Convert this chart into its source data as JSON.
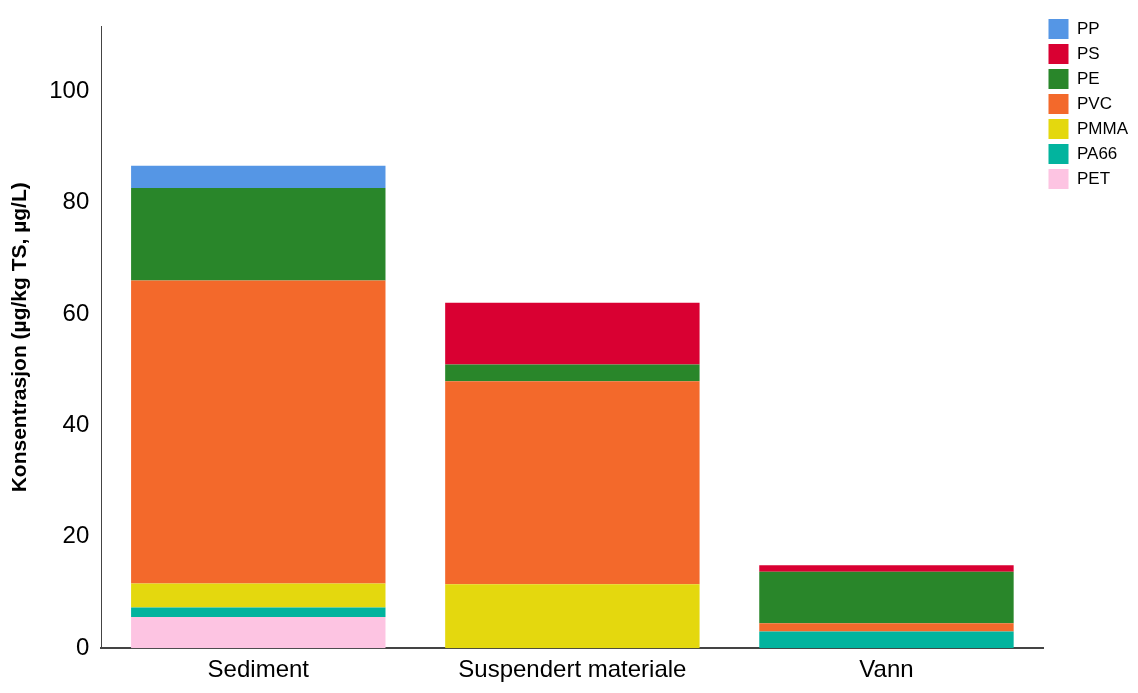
{
  "chart_data": {
    "type": "bar",
    "stacked": true,
    "ylabel": "Konsentrasjon (µg/kg TS, µg/L)",
    "categories": [
      "Sediment",
      "Suspendert materiale",
      "Vann"
    ],
    "series": [
      {
        "name": "PET",
        "color": "#fdc4e2",
        "values": [
          5.6,
          null,
          null
        ]
      },
      {
        "name": "PA66",
        "color": "#02b49e",
        "values": [
          1.7,
          null,
          3.0
        ]
      },
      {
        "name": "PMMA",
        "color": "#e4d80e",
        "values": [
          4.3,
          11.5,
          null
        ]
      },
      {
        "name": "PVC",
        "color": "#f3692b",
        "values": [
          54.4,
          36.4,
          1.5
        ]
      },
      {
        "name": "PE",
        "color": "#29862a",
        "values": [
          16.6,
          3.0,
          9.2
        ]
      },
      {
        "name": "PS",
        "color": "#d90032",
        "values": [
          null,
          11.1,
          1.2
        ]
      },
      {
        "name": "PP",
        "color": "#5596e5",
        "values": [
          4.0,
          null,
          null
        ]
      }
    ],
    "ylim": [
      0,
      111.6
    ],
    "yticks": [
      0,
      20,
      40,
      60,
      80,
      100
    ],
    "grid": false,
    "legend": "top right"
  }
}
